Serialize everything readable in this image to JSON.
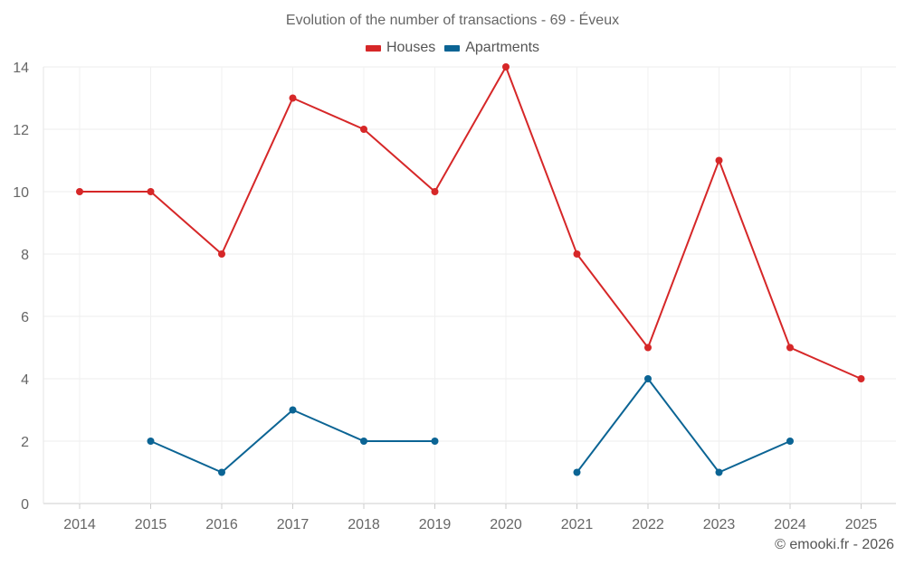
{
  "chart_data": {
    "type": "line",
    "title": "Evolution of the number of transactions - 69 - Éveux",
    "categories": [
      "2014",
      "2015",
      "2016",
      "2017",
      "2018",
      "2019",
      "2020",
      "2021",
      "2022",
      "2023",
      "2024",
      "2025"
    ],
    "ylim": [
      0,
      14
    ],
    "yticks": [
      0,
      2,
      4,
      6,
      8,
      10,
      12,
      14
    ],
    "grid": true,
    "legend_position": "top-center",
    "series": [
      {
        "name": "Houses",
        "color": "#d62728",
        "values": [
          10,
          10,
          8,
          13,
          12,
          10,
          14,
          8,
          5,
          11,
          5,
          4
        ]
      },
      {
        "name": "Apartments",
        "color": "#0b6494",
        "values": [
          null,
          2,
          1,
          3,
          2,
          2,
          null,
          1,
          4,
          1,
          2,
          null
        ]
      }
    ]
  },
  "credit": "© emooki.fr - 2026"
}
